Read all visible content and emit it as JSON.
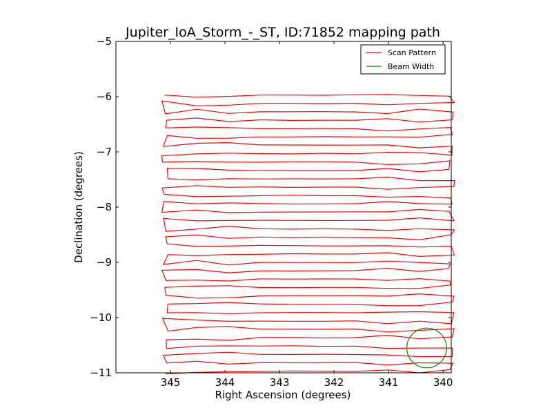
{
  "chart_data": {
    "type": "line",
    "title": "Jupiter_IoA_Storm_-_ST, ID:71852 mapping path",
    "xlabel": "Right Ascension (degrees)",
    "ylabel": "Declination (degrees)",
    "xlim": [
      346.0,
      339.85
    ],
    "ylim": [
      -11,
      -5
    ],
    "xticks": [
      345,
      344,
      343,
      342,
      341,
      340
    ],
    "xtick_labels": [
      "345",
      "344",
      "343",
      "342",
      "341",
      "340"
    ],
    "yticks": [
      -5,
      -6,
      -7,
      -8,
      -9,
      -10,
      -11
    ],
    "ytick_labels": [
      "−5",
      "−6",
      "−7",
      "−8",
      "−9",
      "−10",
      "−11"
    ],
    "grid": false,
    "legend_position": "top-right",
    "series": [
      {
        "name": "Scan Pattern",
        "color": "#ff0000",
        "style": "line",
        "ra_left": 345.1,
        "ra_right": 339.85,
        "dec_start": -5.97,
        "dec_end": -10.97,
        "scan_lines": 34
      },
      {
        "name": "Beam Width",
        "color": "#008000",
        "style": "circle",
        "center_ra": 340.3,
        "center_dec": -10.55,
        "radius_deg": 0.36
      }
    ]
  }
}
